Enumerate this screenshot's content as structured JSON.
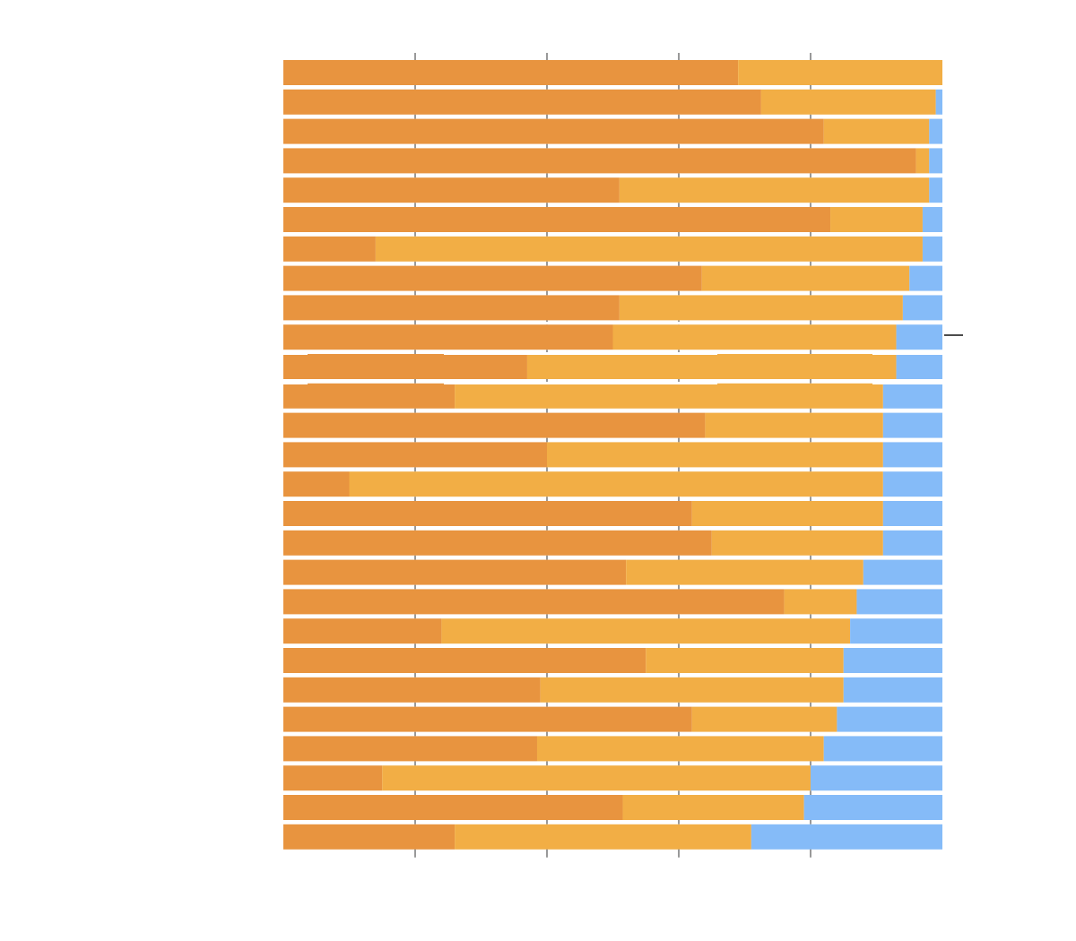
{
  "chart_data": {
    "type": "bar",
    "orientation": "horizontal",
    "stacked": true,
    "normalized": true,
    "title": "",
    "xlabel": "",
    "ylabel": "",
    "xlim": [
      0,
      100
    ],
    "x_ticks": [
      20,
      40,
      60,
      80
    ],
    "grid": false,
    "legend": "none",
    "bar_count": 27,
    "series": [
      {
        "color": "#E8943F",
        "values": [
          69,
          72.5,
          82,
          96,
          51,
          83,
          14,
          63.5,
          51,
          50,
          37,
          26,
          64,
          40,
          10,
          62,
          65,
          52,
          76,
          24,
          55,
          39,
          62,
          38.5,
          15,
          51.5,
          26
        ]
      },
      {
        "color": "#F2AE45",
        "values": [
          31,
          26.5,
          16,
          2,
          47,
          14,
          83,
          31.5,
          43,
          43,
          56,
          65,
          27,
          51,
          81,
          29,
          26,
          36,
          11,
          62,
          30,
          46,
          22,
          43.5,
          65,
          27.5,
          45
        ]
      },
      {
        "color": "#85BBF8",
        "values": [
          0,
          1,
          2,
          2,
          2,
          3,
          3,
          5,
          6,
          7,
          7,
          9,
          9,
          9,
          9,
          9,
          9,
          12,
          13,
          14,
          15,
          15,
          16,
          18,
          20,
          21,
          29
        ]
      }
    ]
  }
}
